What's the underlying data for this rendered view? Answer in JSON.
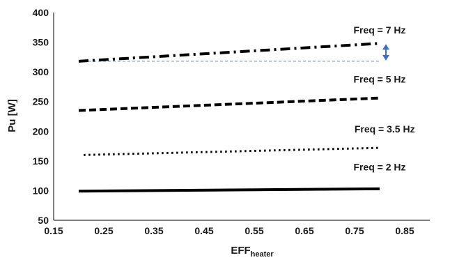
{
  "chart_data": {
    "type": "line",
    "xlabel": "EFF",
    "xlabel_sub": "heater",
    "ylabel": "Pu [W]",
    "xlim": [
      0.15,
      0.9
    ],
    "ylim": [
      50,
      400
    ],
    "xticks": [
      "0.15",
      "0.25",
      "0.35",
      "0.45",
      "0.55",
      "0.65",
      "0.75",
      "0.85"
    ],
    "yticks": [
      "50",
      "100",
      "150",
      "200",
      "250",
      "300",
      "350",
      "400"
    ],
    "grid": false,
    "legend": "none",
    "series": [
      {
        "x": [
          0.2,
          0.8
        ],
        "y": [
          318,
          348
        ],
        "style": "dash-dot",
        "color": "#000000"
      },
      {
        "x": [
          0.2,
          0.8
        ],
        "y": [
          235,
          256
        ],
        "style": "dashed",
        "color": "#000000"
      },
      {
        "x": [
          0.21,
          0.8
        ],
        "y": [
          160,
          172
        ],
        "style": "dotted",
        "color": "#000000"
      },
      {
        "x": [
          0.2,
          0.8
        ],
        "y": [
          99,
          103
        ],
        "style": "solid",
        "color": "#000000"
      }
    ],
    "annotations": [
      {
        "text": "Freq = 7 Hz",
        "x": 0.8,
        "y": 365
      },
      {
        "text": "Freq = 5 Hz",
        "x": 0.8,
        "y": 282
      },
      {
        "text": "Freq = 3.5 Hz",
        "x": 0.81,
        "y": 198
      },
      {
        "text": "Freq = 2 Hz",
        "x": 0.8,
        "y": 134
      }
    ],
    "reference_line": {
      "y": 318,
      "x": [
        0.2,
        0.8
      ],
      "style": "dashed",
      "color": "#5b8ad6"
    },
    "difference_arrow": {
      "x": 0.8,
      "y": [
        318,
        348
      ],
      "color": "#3f6fc4"
    }
  }
}
